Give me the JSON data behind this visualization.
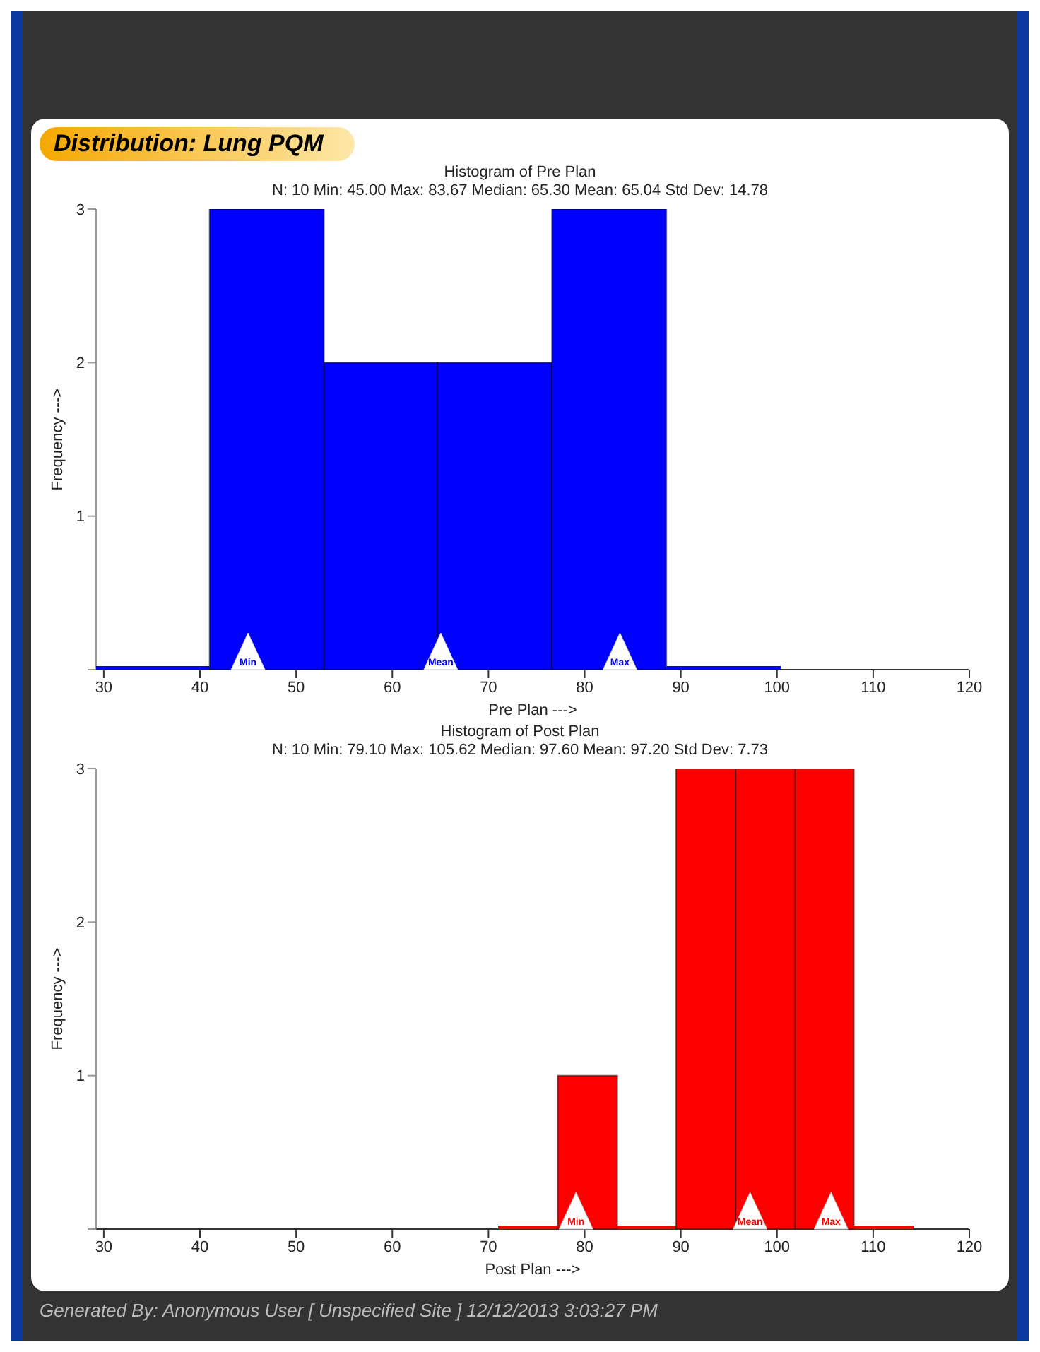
{
  "chart_data": [
    {
      "type": "histogram",
      "title": "Histogram of Pre Plan",
      "subtitle": "N: 10  Min: 45.00  Max: 83.67  Median: 65.30  Mean: 65.04  Std Dev: 14.78",
      "xlabel": "Pre Plan --->",
      "ylabel": "Frequency --->",
      "bins": [
        29.2,
        41.0,
        52.9,
        64.7,
        76.6,
        88.5,
        100.4
      ],
      "values": [
        0,
        3,
        2,
        2,
        3,
        0
      ],
      "color": "#0000ff",
      "xlim": [
        29.2,
        120
      ],
      "xticks": [
        30,
        40,
        50,
        60,
        70,
        80,
        90,
        100,
        110,
        120
      ],
      "ylim": [
        0,
        3
      ],
      "yticks": [
        {
          "value": 0,
          "label": null
        },
        1,
        2,
        3
      ],
      "grid": false,
      "annotations": [
        "Distribution: Lung PQM",
        {
          "text": "Min",
          "x": 45.0,
          "y": 0
        },
        {
          "text": "Mean",
          "x": 65.04,
          "y": 0
        },
        {
          "text": "Max",
          "x": 83.67,
          "y": 0
        }
      ]
    },
    {
      "type": "histogram",
      "title": "Histogram of Post Plan",
      "subtitle": "N: 10  Min: 79.10  Max: 105.62  Median: 97.60  Mean: 97.20  Std Dev: 7.73",
      "xlabel": "Post Plan --->",
      "ylabel": "Frequency --->",
      "bins": [
        71.0,
        77.2,
        83.4,
        89.5,
        95.7,
        101.9,
        108.0,
        114.2
      ],
      "values": [
        0,
        1,
        0,
        3,
        3,
        3,
        0
      ],
      "color": "#ff0000",
      "xlim": [
        29.2,
        120
      ],
      "xticks": [
        30,
        40,
        50,
        60,
        70,
        80,
        90,
        100,
        110,
        120
      ],
      "ylim": [
        0,
        3
      ],
      "yticks": [
        {
          "value": 0,
          "label": null
        },
        1,
        2,
        3
      ],
      "grid": false,
      "annotations": [
        {
          "text": "Min",
          "x": 79.1,
          "y": 0
        },
        {
          "text": "Mean",
          "x": 97.2,
          "y": 0
        },
        {
          "text": "Max",
          "x": 105.62,
          "y": 0
        },
        "Generated By: Anonymous User [ Unspecified Site ] 12/12/2013 3:03:27 PM"
      ]
    }
  ]
}
